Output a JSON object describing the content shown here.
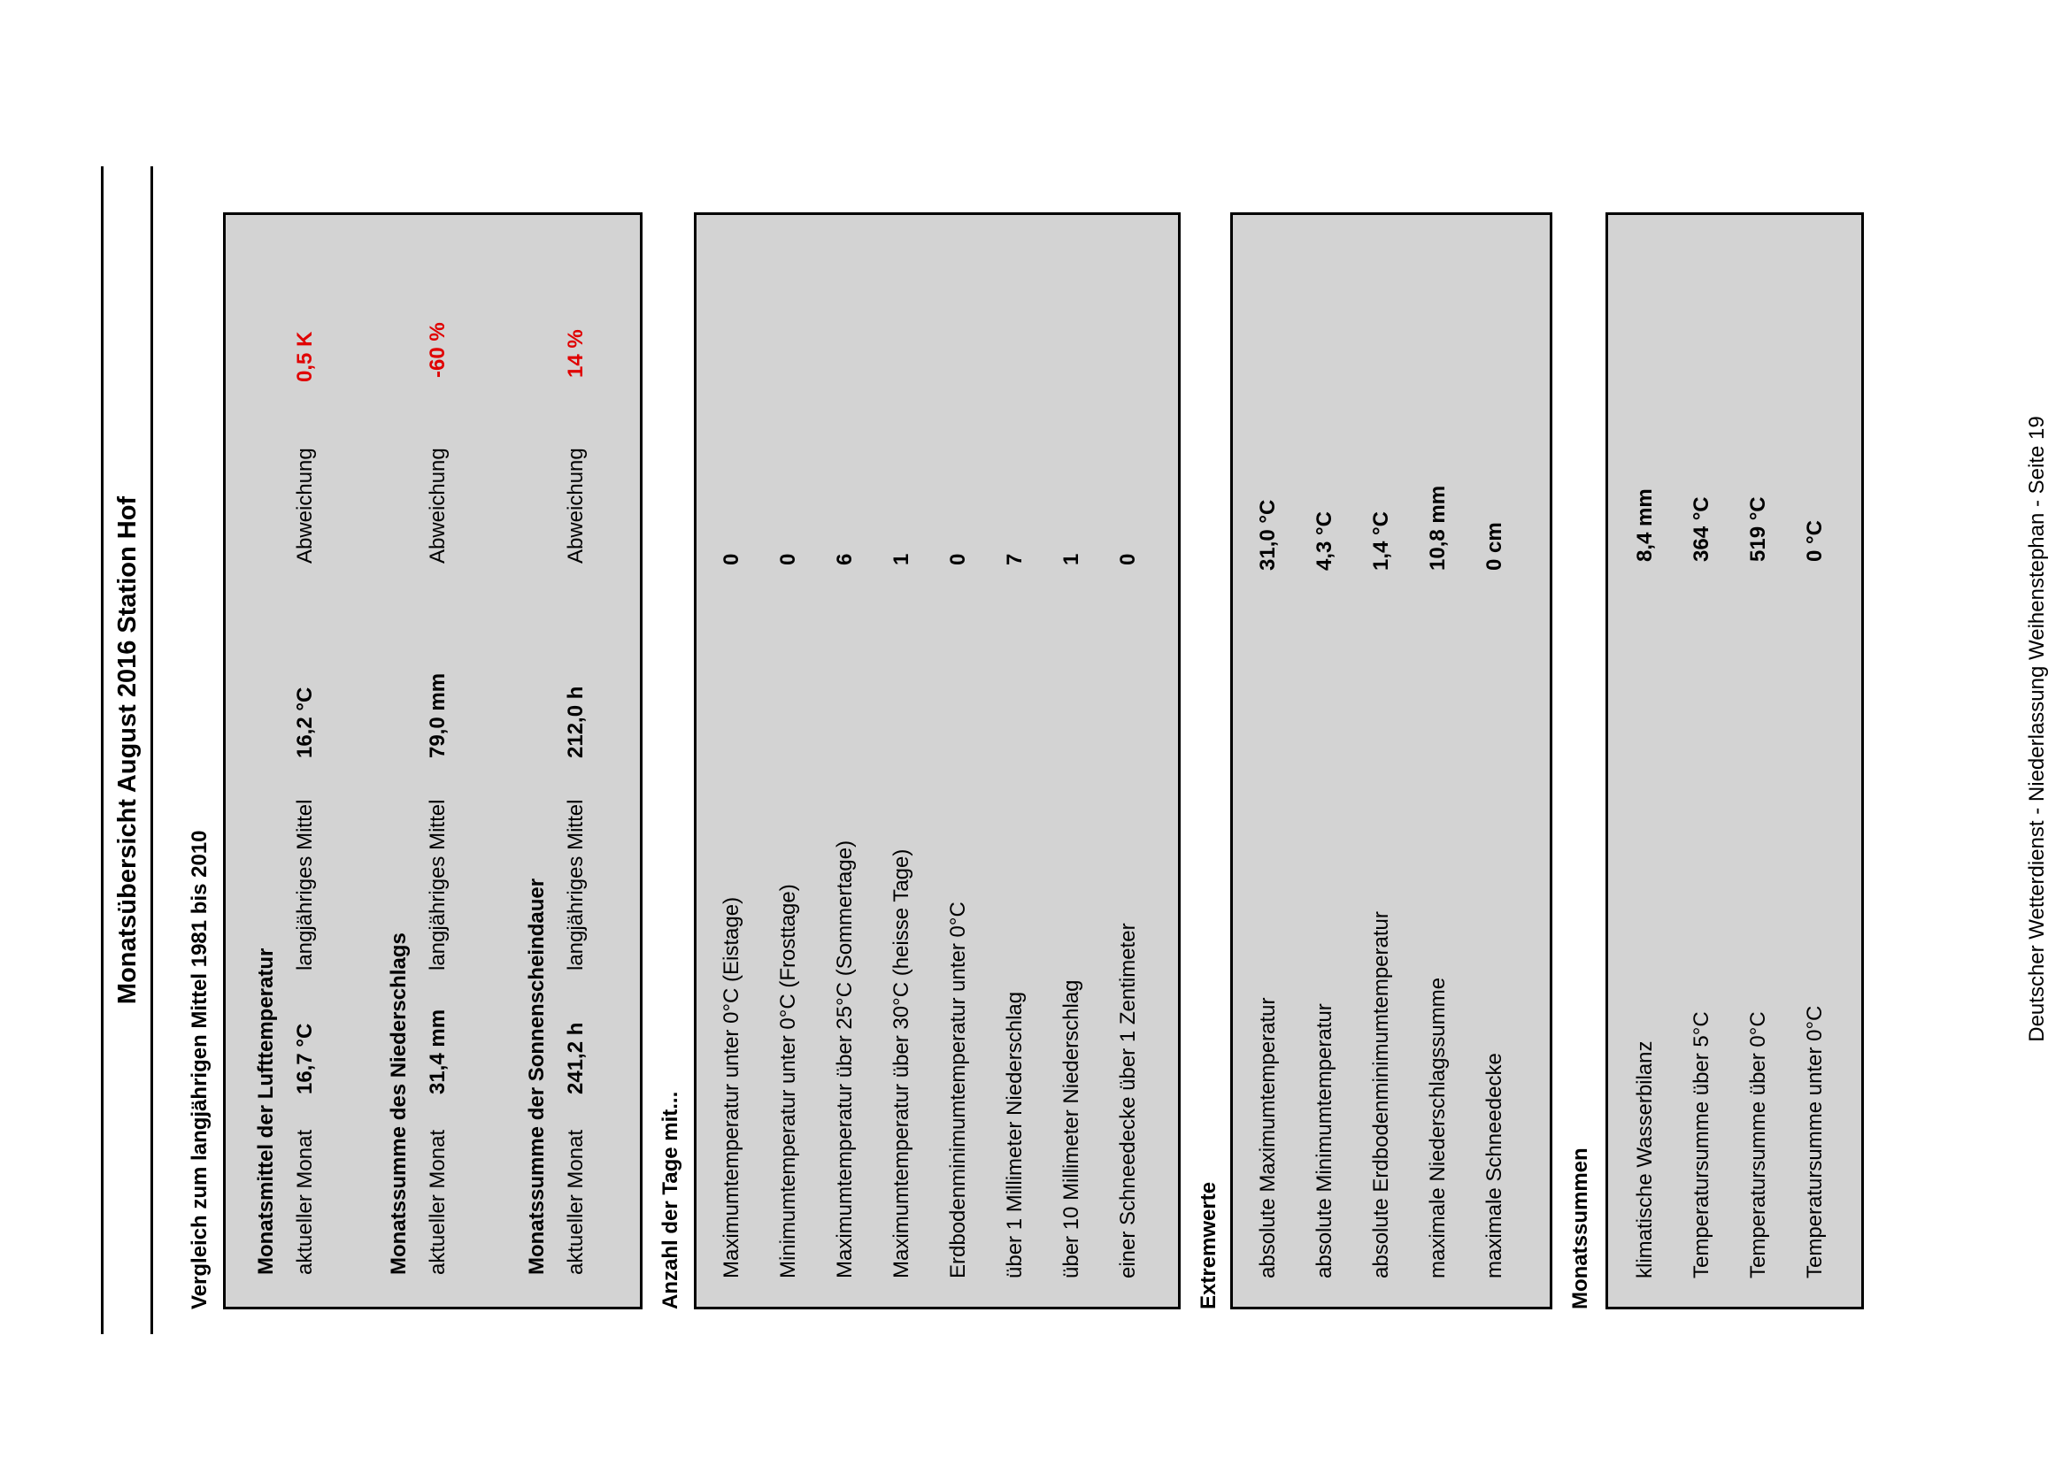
{
  "title": "Monatsübersicht August 2016 Station Hof",
  "comparison": {
    "heading": "Vergleich zum langjährigen Mittel 1981 bis 2010",
    "groups": [
      {
        "title": "Monatsmittel der Lufttemperatur",
        "current_label": "aktueller Monat",
        "current_value": "16,7 °C",
        "mean_label": "langjähriges Mittel",
        "mean_value": "16,2 °C",
        "deviation_label": "Abweichung",
        "deviation_value": "0,5  K"
      },
      {
        "title": "Monatssumme des Niederschlags",
        "current_label": "aktueller Monat",
        "current_value": "31,4 mm",
        "mean_label": "langjähriges Mittel",
        "mean_value": "79,0 mm",
        "deviation_label": "Abweichung",
        "deviation_value": "-60 %"
      },
      {
        "title": "Monatssumme der Sonnenscheindauer",
        "current_label": "aktueller Monat",
        "current_value": "241,2 h",
        "mean_label": "langjähriges Mittel",
        "mean_value": "212,0 h",
        "deviation_label": "Abweichung",
        "deviation_value": "14 %"
      }
    ]
  },
  "days": {
    "heading": "Anzahl der Tage mit...",
    "rows": [
      {
        "label": "Maximumtemperatur unter 0°C (Eistage)",
        "value": "0"
      },
      {
        "label": "Minimumtemperatur unter 0°C (Frosttage)",
        "value": "0"
      },
      {
        "label": "Maximumtemperatur über 25°C (Sommertage)",
        "value": "6"
      },
      {
        "label": "Maximumtemperatur über 30°C (heisse Tage)",
        "value": "1"
      },
      {
        "label": "Erdbodenminimumtemperatur unter 0°C",
        "value": "0"
      },
      {
        "label": "über 1 Millimeter Niederschlag",
        "value": "7"
      },
      {
        "label": "über 10 Millimeter Niederschlag",
        "value": "1"
      },
      {
        "label": "einer Schneedecke über 1 Zentimeter",
        "value": "0"
      }
    ]
  },
  "extremes": {
    "heading": "Extremwerte",
    "rows": [
      {
        "label": "absolute Maximumtemperatur",
        "value": "31,0  °C"
      },
      {
        "label": "absolute Minimumtemperatur",
        "value": "4,3  °C"
      },
      {
        "label": "absolute Erdbodenminimumtemperatur",
        "value": "1,4  °C"
      },
      {
        "label": "maximale Niederschlagssumme",
        "value": "10,8  mm"
      },
      {
        "label": "maximale  Schneedecke",
        "value": "0 cm"
      }
    ]
  },
  "sums": {
    "heading": "Monatssummen",
    "rows": [
      {
        "label": "klimatische Wasserbilanz",
        "value": "8,4  mm"
      },
      {
        "label": "Temperatursumme über 5°C",
        "value": "364  °C"
      },
      {
        "label": "Temperatursumme über 0°C",
        "value": "519  °C"
      },
      {
        "label": "Temperatursumme unter 0°C",
        "value": "0  °C"
      }
    ]
  },
  "footer": "Deutscher Wetterdienst - Niederlassung Weihenstephan - Seite 19",
  "colors": {
    "box_background": "#d3d3d3",
    "deviation_text": "#e00000"
  }
}
